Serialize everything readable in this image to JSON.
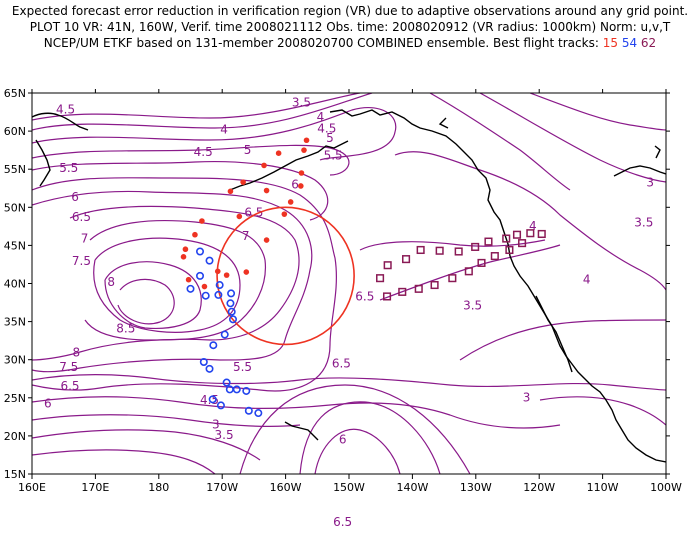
{
  "header": {
    "line1": "Expected forecast error reduction in verification region (VR) due to adaptive observations around any grid point.",
    "line2": "PLOT 10 VR: 41N, 160W, Verif. time 2008021112 Obs. time: 2008020912 (VR radius: 1000km) Norm: u,v,T",
    "line3_prefix": "NCEP/UM ETKF based on 131-member 2008020700 COMBINED ensemble.  Best flight tracks:",
    "track_ids": [
      "15",
      "54",
      "62"
    ]
  },
  "colors": {
    "contour": "#8a1a8a",
    "coast": "#000000",
    "verif_circle": "#ee3322",
    "track15": "#ee3322",
    "track54": "#2244ee",
    "track62": "#8a1a55"
  },
  "map": {
    "lon_range": [
      160,
      260
    ],
    "lat_range": [
      15,
      65
    ],
    "lon_labels": [
      "160E",
      "170E",
      "180",
      "170W",
      "160W",
      "150W",
      "140W",
      "130W",
      "120W",
      "110W",
      "100W"
    ],
    "lat_labels": [
      "15N",
      "20N",
      "25N",
      "30N",
      "35N",
      "40N",
      "45N",
      "50N",
      "55N",
      "60N",
      "65N"
    ],
    "verification_region": {
      "lat": 41,
      "lon": 200,
      "radius_km": 1000
    }
  },
  "contour_labels": [
    {
      "text": "4.5",
      "lon": 165.3,
      "lat": 62.3
    },
    {
      "text": "3.5",
      "lon": 202.5,
      "lat": 63.2
    },
    {
      "text": "4",
      "lon": 205.5,
      "lat": 61.3
    },
    {
      "text": "4.5",
      "lon": 206.5,
      "lat": 59.8
    },
    {
      "text": "5",
      "lon": 207.0,
      "lat": 58.6
    },
    {
      "text": "4",
      "lon": 190.3,
      "lat": 59.7
    },
    {
      "text": "4.5",
      "lon": 187.0,
      "lat": 56.7
    },
    {
      "text": "5",
      "lon": 194.0,
      "lat": 57.0
    },
    {
      "text": "5.5",
      "lon": 207.5,
      "lat": 56.3
    },
    {
      "text": "5.5",
      "lon": 165.8,
      "lat": 54.6
    },
    {
      "text": "6",
      "lon": 166.8,
      "lat": 50.8
    },
    {
      "text": "6",
      "lon": 201.5,
      "lat": 52.5
    },
    {
      "text": "6.5",
      "lon": 195.0,
      "lat": 48.8
    },
    {
      "text": "6.5",
      "lon": 167.8,
      "lat": 48.2
    },
    {
      "text": "7",
      "lon": 168.3,
      "lat": 45.4
    },
    {
      "text": "7",
      "lon": 193.7,
      "lat": 45.7
    },
    {
      "text": "7.5",
      "lon": 167.8,
      "lat": 42.4
    },
    {
      "text": "8",
      "lon": 172.5,
      "lat": 39.7
    },
    {
      "text": "8.5",
      "lon": 174.8,
      "lat": 33.6
    },
    {
      "text": "8",
      "lon": 167.0,
      "lat": 30.4
    },
    {
      "text": "7.5",
      "lon": 165.8,
      "lat": 28.5
    },
    {
      "text": "6.5",
      "lon": 166.0,
      "lat": 26.0
    },
    {
      "text": "6",
      "lon": 162.5,
      "lat": 23.7
    },
    {
      "text": "5.5",
      "lon": 193.2,
      "lat": 28.5
    },
    {
      "text": "4.5",
      "lon": 188.0,
      "lat": 24.2
    },
    {
      "text": "3",
      "lon": 189.0,
      "lat": 21.0
    },
    {
      "text": "3.5",
      "lon": 190.3,
      "lat": 19.6
    },
    {
      "text": "6.5",
      "lon": 208.8,
      "lat": 29.0
    },
    {
      "text": "6.5",
      "lon": 212.5,
      "lat": 37.8
    },
    {
      "text": "6",
      "lon": 209.0,
      "lat": 19.0
    },
    {
      "text": "6.5",
      "lon": 209.0,
      "lat": 8.2
    },
    {
      "text": "3.5",
      "lon": 229.5,
      "lat": 36.6
    },
    {
      "text": "4",
      "lon": 247.5,
      "lat": 40.0
    },
    {
      "text": "3.5",
      "lon": 256.5,
      "lat": 47.5
    },
    {
      "text": "3",
      "lon": 257.5,
      "lat": 52.7
    },
    {
      "text": "4",
      "lon": 239.0,
      "lat": 47.0
    },
    {
      "text": "3",
      "lon": 238.0,
      "lat": 24.5
    }
  ],
  "tracks": {
    "t15": [
      [
        203.3,
        58.8
      ],
      [
        196.6,
        55.5
      ],
      [
        198.9,
        57.1
      ],
      [
        202.9,
        57.5
      ],
      [
        193.3,
        53.3
      ],
      [
        191.3,
        52.1
      ],
      [
        202.5,
        54.5
      ],
      [
        202.4,
        52.8
      ],
      [
        197.0,
        52.2
      ],
      [
        200.8,
        50.7
      ],
      [
        199.8,
        49.1
      ],
      [
        186.8,
        48.2
      ],
      [
        192.7,
        48.8
      ],
      [
        197.0,
        45.7
      ],
      [
        185.7,
        46.4
      ],
      [
        184.2,
        44.5
      ],
      [
        183.9,
        43.5
      ],
      [
        184.7,
        40.5
      ],
      [
        187.2,
        39.6
      ],
      [
        189.3,
        41.6
      ],
      [
        193.8,
        41.5
      ],
      [
        190.7,
        41.1
      ]
    ],
    "t54": [
      [
        186.5,
        44.2
      ],
      [
        188.0,
        43.0
      ],
      [
        186.5,
        41.0
      ],
      [
        189.6,
        39.8
      ],
      [
        185.0,
        39.3
      ],
      [
        187.4,
        38.4
      ],
      [
        189.4,
        38.5
      ],
      [
        191.4,
        38.7
      ],
      [
        191.3,
        37.4
      ],
      [
        191.5,
        36.3
      ],
      [
        191.7,
        35.3
      ],
      [
        190.4,
        33.3
      ],
      [
        188.6,
        31.9
      ],
      [
        187.1,
        29.7
      ],
      [
        188.0,
        28.8
      ],
      [
        190.7,
        27.0
      ],
      [
        191.2,
        26.1
      ],
      [
        188.5,
        24.8
      ],
      [
        189.8,
        24.0
      ],
      [
        192.3,
        26.1
      ],
      [
        193.8,
        25.9
      ],
      [
        194.2,
        23.3
      ],
      [
        195.7,
        23.0
      ]
    ],
    "t62": [
      [
        214.9,
        40.7
      ],
      [
        216.1,
        42.4
      ],
      [
        219.0,
        43.2
      ],
      [
        221.3,
        44.4
      ],
      [
        224.3,
        44.3
      ],
      [
        227.3,
        44.2
      ],
      [
        229.9,
        44.8
      ],
      [
        232.0,
        45.5
      ],
      [
        234.8,
        45.9
      ],
      [
        236.5,
        46.4
      ],
      [
        238.6,
        46.6
      ],
      [
        240.4,
        46.5
      ],
      [
        216.0,
        38.3
      ],
      [
        218.4,
        38.9
      ],
      [
        221.0,
        39.3
      ],
      [
        223.5,
        39.8
      ],
      [
        226.3,
        40.7
      ],
      [
        228.9,
        41.6
      ],
      [
        230.9,
        42.7
      ],
      [
        233.0,
        43.6
      ],
      [
        235.3,
        44.4
      ],
      [
        237.3,
        45.3
      ]
    ]
  }
}
